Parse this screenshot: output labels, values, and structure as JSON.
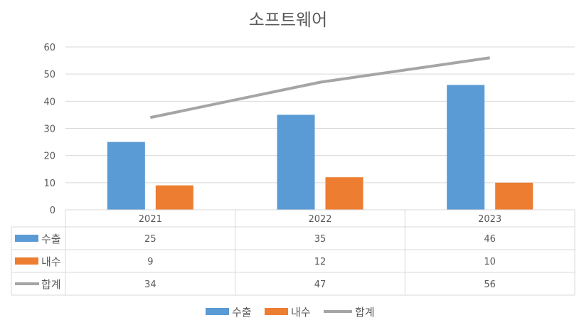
{
  "chart_data": {
    "type": "bar",
    "title": "소프트웨어",
    "categories": [
      "2021",
      "2022",
      "2023"
    ],
    "series": [
      {
        "name": "수출",
        "kind": "bar",
        "color": "#5B9BD5",
        "values": [
          25,
          35,
          46
        ]
      },
      {
        "name": "내수",
        "kind": "bar",
        "color": "#ED7D31",
        "values": [
          9,
          12,
          10
        ]
      },
      {
        "name": "합계",
        "kind": "line",
        "color": "#A5A5A5",
        "values": [
          34,
          47,
          56
        ]
      }
    ],
    "ylim": [
      0,
      60
    ],
    "yticks": [
      "0",
      "10",
      "20",
      "30",
      "40",
      "50",
      "60"
    ],
    "grid": true,
    "data_table": true,
    "legend_position": "bottom"
  }
}
